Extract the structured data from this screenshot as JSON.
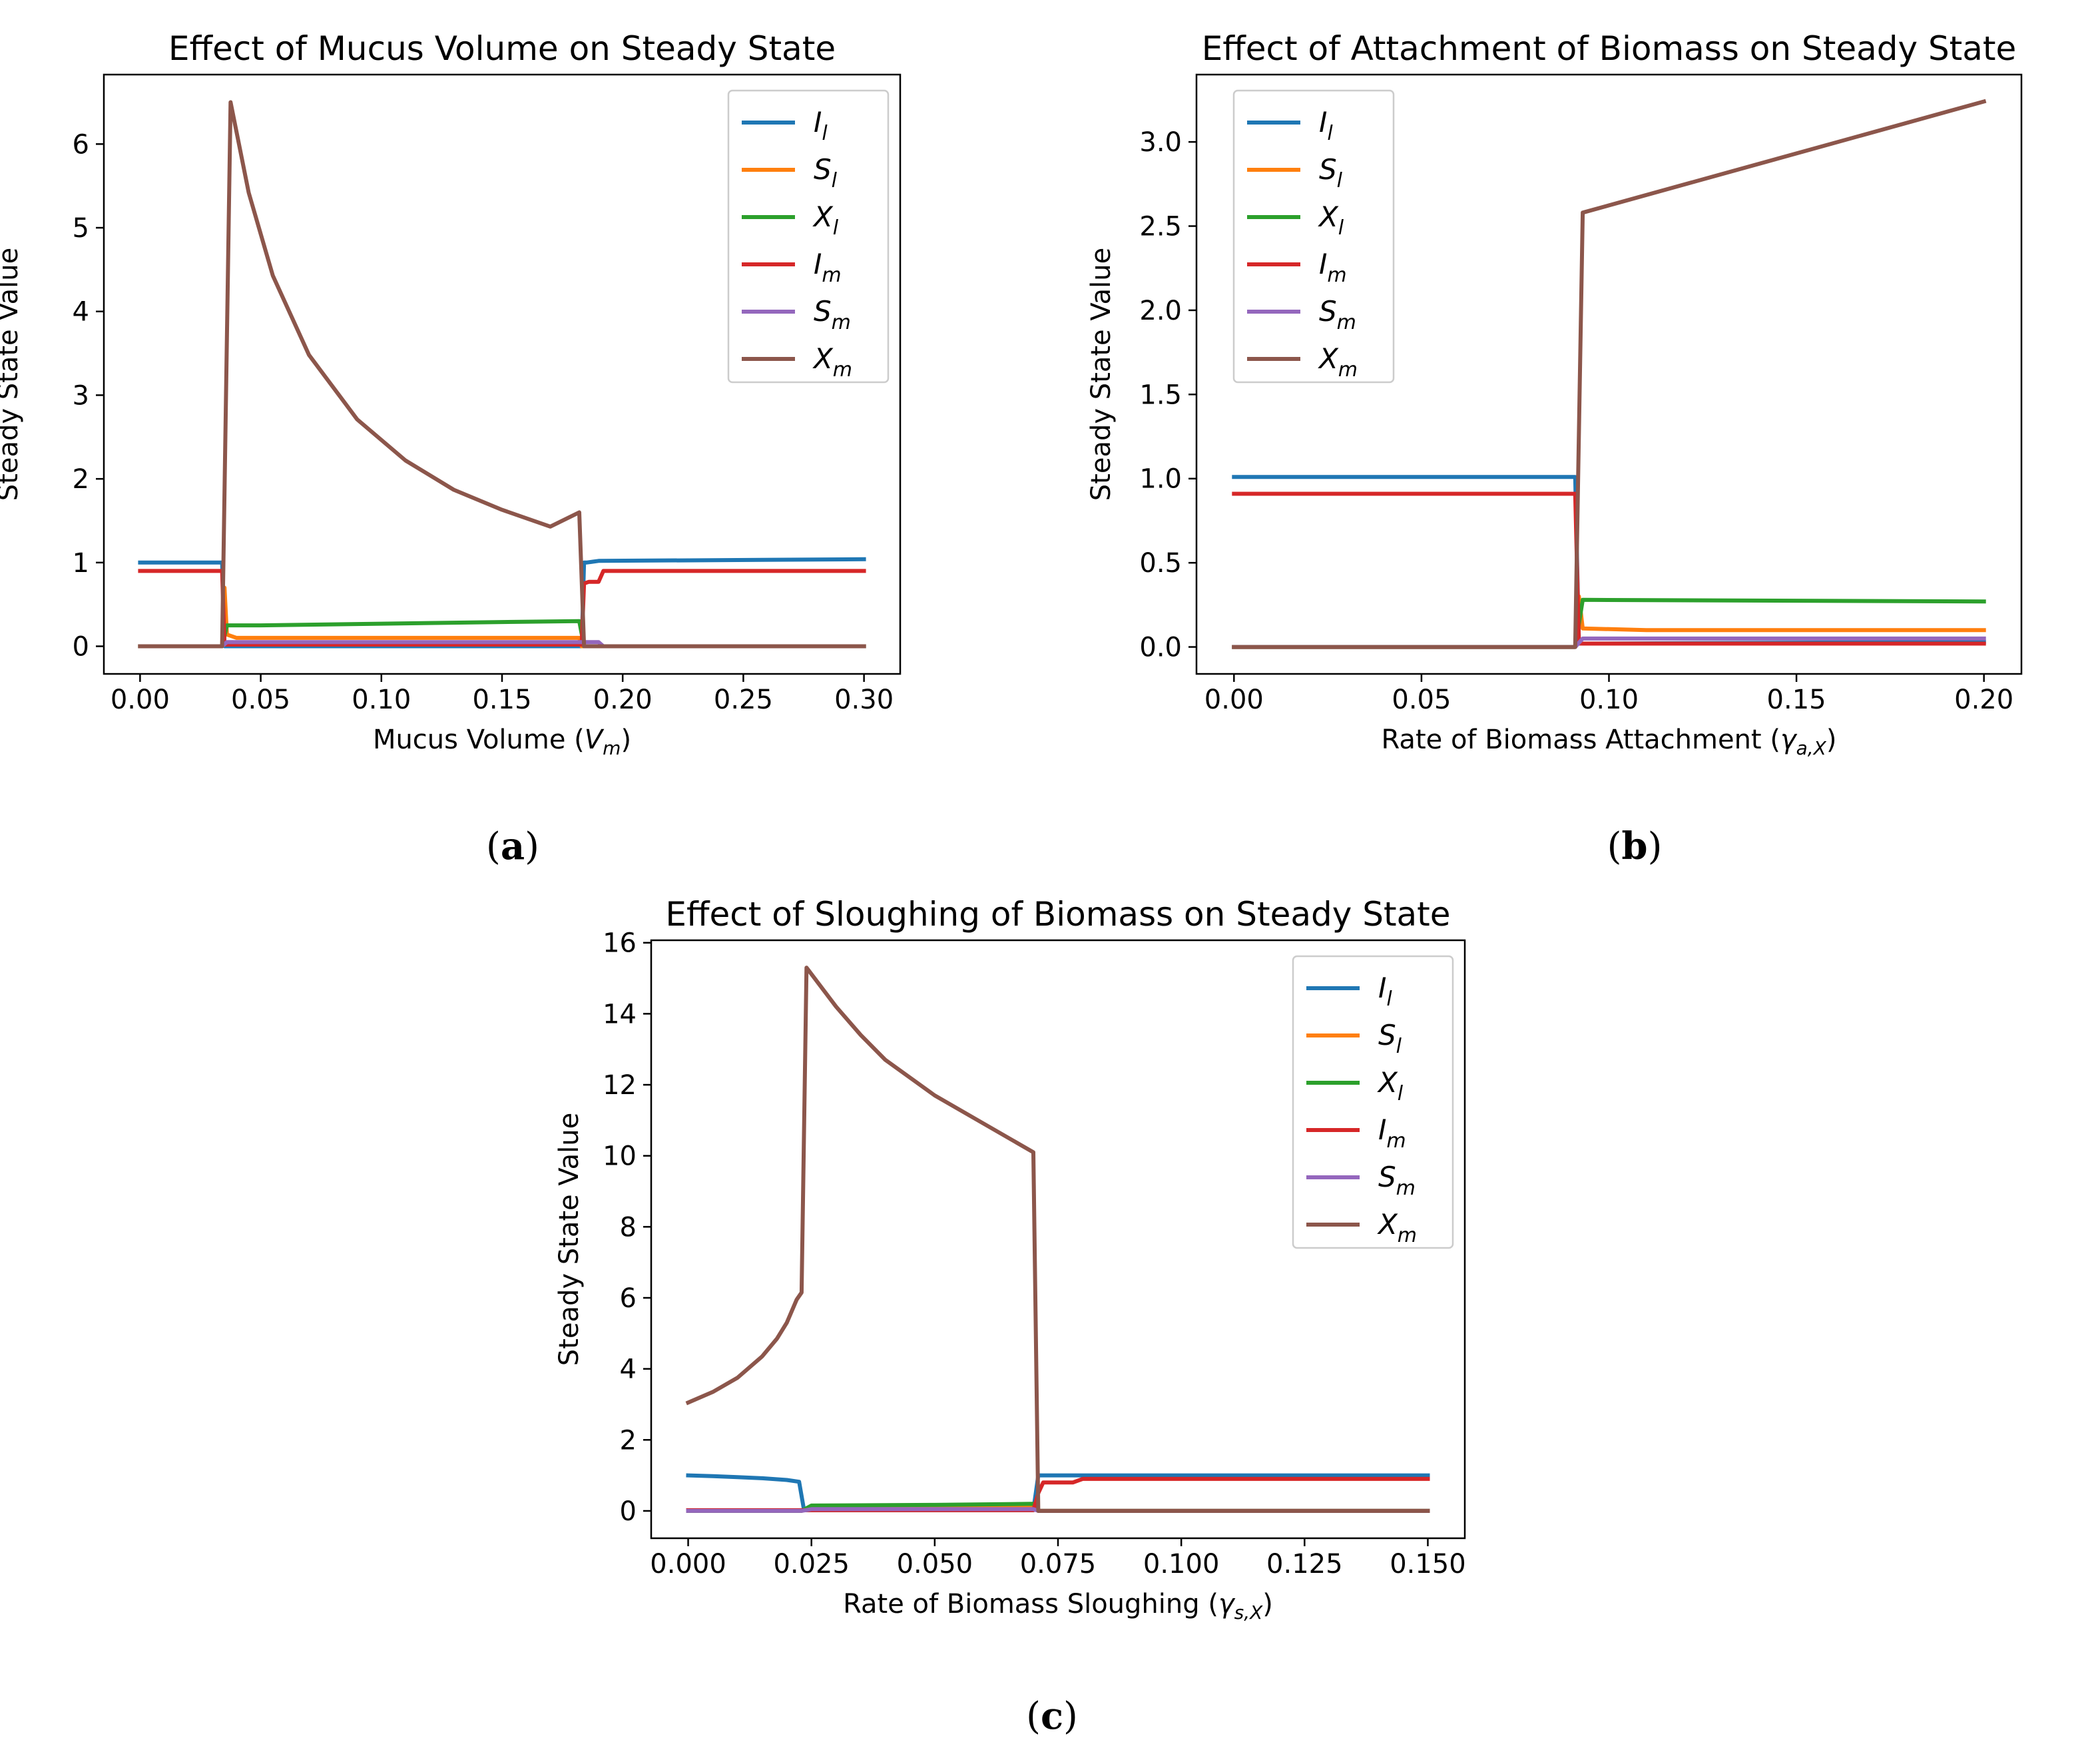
{
  "colors": {
    "I_l": "#1f77b4",
    "S_l": "#ff7f0e",
    "X_l": "#2ca02c",
    "I_m": "#d62728",
    "S_m": "#9467bd",
    "X_m": "#8c564b"
  },
  "legend_entries": [
    {
      "key": "I_l",
      "base": "I",
      "sub": "l"
    },
    {
      "key": "S_l",
      "base": "S",
      "sub": "l"
    },
    {
      "key": "X_l",
      "base": "X",
      "sub": "l"
    },
    {
      "key": "I_m",
      "base": "I",
      "sub": "m"
    },
    {
      "key": "S_m",
      "base": "S",
      "sub": "m"
    },
    {
      "key": "X_m",
      "base": "X",
      "sub": "m"
    }
  ],
  "chart_data": [
    {
      "id": "a",
      "type": "line",
      "panel_label": "a",
      "title": "Effect of Mucus Volume on Steady State",
      "xlabel_pre": "Mucus Volume (",
      "xlabel_sym": "V",
      "xlabel_sub": "m",
      "xlabel_post": ")",
      "ylabel": "Steady State Value",
      "xlim": [
        -0.015,
        0.315
      ],
      "ylim": [
        -0.33,
        6.83
      ],
      "xticks": [
        0.0,
        0.05,
        0.1,
        0.15,
        0.2,
        0.25,
        0.3
      ],
      "xtick_labels": [
        "0.00",
        "0.05",
        "0.10",
        "0.15",
        "0.20",
        "0.25",
        "0.30"
      ],
      "yticks": [
        0,
        1,
        2,
        3,
        4,
        5,
        6
      ],
      "ytick_labels": [
        "0",
        "1",
        "2",
        "3",
        "4",
        "5",
        "6"
      ],
      "legend_position": "upper right",
      "series": [
        {
          "key": "I_l",
          "x": [
            0,
            0.034,
            0.035,
            0.183,
            0.184,
            0.185,
            0.19,
            0.3
          ],
          "y": [
            1.0,
            1.0,
            0.0,
            0.0,
            1.0,
            1.0,
            1.02,
            1.04
          ]
        },
        {
          "key": "S_l",
          "x": [
            0,
            0.034,
            0.035,
            0.036,
            0.04,
            0.1,
            0.182,
            0.183,
            0.19,
            0.3
          ],
          "y": [
            0,
            0,
            0.7,
            0.14,
            0.1,
            0.1,
            0.1,
            0.0,
            0.0,
            0.0
          ]
        },
        {
          "key": "X_l",
          "x": [
            0,
            0.034,
            0.036,
            0.05,
            0.1,
            0.15,
            0.182,
            0.184,
            0.3
          ],
          "y": [
            0,
            0,
            0.25,
            0.25,
            0.27,
            0.29,
            0.3,
            0.0,
            0.0
          ]
        },
        {
          "key": "I_m",
          "x": [
            0,
            0.034,
            0.035,
            0.183,
            0.184,
            0.186,
            0.19,
            0.192,
            0.3
          ],
          "y": [
            0.9,
            0.9,
            0.02,
            0.02,
            0.75,
            0.77,
            0.77,
            0.9,
            0.9
          ]
        },
        {
          "key": "S_m",
          "x": [
            0,
            0.034,
            0.036,
            0.182,
            0.184,
            0.19,
            0.192,
            0.3
          ],
          "y": [
            0,
            0,
            0.05,
            0.05,
            0.05,
            0.05,
            0.0,
            0.0
          ]
        },
        {
          "key": "X_m",
          "x": [
            0,
            0.034,
            0.0375,
            0.045,
            0.055,
            0.07,
            0.09,
            0.11,
            0.13,
            0.15,
            0.17,
            0.182,
            0.184,
            0.3
          ],
          "y": [
            0,
            0,
            6.5,
            5.42,
            4.43,
            3.48,
            2.71,
            2.22,
            1.87,
            1.63,
            1.43,
            1.6,
            0.0,
            0.0
          ]
        }
      ]
    },
    {
      "id": "b",
      "type": "line",
      "panel_label": "b",
      "title": "Effect of Attachment of Biomass on Steady State",
      "xlabel_pre": "Rate of Biomass Attachment (",
      "xlabel_sym": "γ",
      "xlabel_sub": "a,X",
      "xlabel_post": ")",
      "ylabel": "Steady State Value",
      "xlim": [
        -0.01,
        0.21
      ],
      "ylim": [
        -0.16,
        3.4
      ],
      "xticks": [
        0.0,
        0.05,
        0.1,
        0.15,
        0.2
      ],
      "xtick_labels": [
        "0.00",
        "0.05",
        "0.10",
        "0.15",
        "0.20"
      ],
      "yticks": [
        0.0,
        0.5,
        1.0,
        1.5,
        2.0,
        2.5,
        3.0
      ],
      "ytick_labels": [
        "0.0",
        "0.5",
        "1.0",
        "1.5",
        "2.0",
        "2.5",
        "3.0"
      ],
      "legend_position": "upper left",
      "series": [
        {
          "key": "I_l",
          "x": [
            0,
            0.091,
            0.092,
            0.2
          ],
          "y": [
            1.01,
            1.01,
            0.02,
            0.03
          ]
        },
        {
          "key": "S_l",
          "x": [
            0,
            0.091,
            0.092,
            0.093,
            0.11,
            0.2
          ],
          "y": [
            0,
            0,
            0.3,
            0.11,
            0.1,
            0.1
          ]
        },
        {
          "key": "X_l",
          "x": [
            0,
            0.091,
            0.093,
            0.2
          ],
          "y": [
            0,
            0,
            0.28,
            0.27
          ]
        },
        {
          "key": "I_m",
          "x": [
            0,
            0.091,
            0.092,
            0.2
          ],
          "y": [
            0.91,
            0.91,
            0.02,
            0.02
          ]
        },
        {
          "key": "S_m",
          "x": [
            0,
            0.091,
            0.093,
            0.2
          ],
          "y": [
            0,
            0,
            0.05,
            0.05
          ]
        },
        {
          "key": "X_m",
          "x": [
            0,
            0.091,
            0.093,
            0.2
          ],
          "y": [
            0,
            0,
            2.58,
            3.24
          ]
        }
      ]
    },
    {
      "id": "c",
      "type": "line",
      "panel_label": "c",
      "title": "Effect of Sloughing of Biomass on Steady State",
      "xlabel_pre": "Rate of Biomass Sloughing (",
      "xlabel_sym": "γ",
      "xlabel_sub": "s,X",
      "xlabel_post": ")",
      "ylabel": "Steady State Value",
      "xlim": [
        -0.0075,
        0.1575
      ],
      "ylim": [
        -0.77,
        16.07
      ],
      "xticks": [
        0.0,
        0.025,
        0.05,
        0.075,
        0.1,
        0.125,
        0.15
      ],
      "xtick_labels": [
        "0.000",
        "0.025",
        "0.050",
        "0.075",
        "0.100",
        "0.125",
        "0.150"
      ],
      "yticks": [
        0,
        2,
        4,
        6,
        8,
        10,
        12,
        14,
        16
      ],
      "ytick_labels": [
        "0",
        "2",
        "4",
        "6",
        "8",
        "10",
        "12",
        "14",
        "16"
      ],
      "legend_position": "upper right",
      "series": [
        {
          "key": "I_l",
          "x": [
            0,
            0.005,
            0.01,
            0.015,
            0.02,
            0.0225,
            0.0235,
            0.07,
            0.071,
            0.072,
            0.15
          ],
          "y": [
            1.0,
            0.98,
            0.95,
            0.92,
            0.87,
            0.82,
            0.02,
            0.02,
            1.0,
            1.0,
            1.0
          ]
        },
        {
          "key": "S_l",
          "x": [
            0,
            0.023,
            0.025,
            0.05,
            0.07,
            0.071,
            0.15
          ],
          "y": [
            0,
            0,
            0.12,
            0.14,
            0.15,
            0.0,
            0.0
          ]
        },
        {
          "key": "X_l",
          "x": [
            0,
            0.023,
            0.025,
            0.05,
            0.07,
            0.071,
            0.15
          ],
          "y": [
            0,
            0,
            0.15,
            0.17,
            0.2,
            0.0,
            0.0
          ]
        },
        {
          "key": "I_m",
          "x": [
            0,
            0.023,
            0.07,
            0.071,
            0.072,
            0.078,
            0.08,
            0.15
          ],
          "y": [
            0.02,
            0.02,
            0.02,
            0.5,
            0.8,
            0.8,
            0.9,
            0.9
          ]
        },
        {
          "key": "S_m",
          "x": [
            0,
            0.023,
            0.025,
            0.07,
            0.071,
            0.15
          ],
          "y": [
            0,
            0,
            0.05,
            0.05,
            0.0,
            0.0
          ]
        },
        {
          "key": "X_m",
          "x": [
            0,
            0.005,
            0.01,
            0.015,
            0.018,
            0.02,
            0.022,
            0.023,
            0.024,
            0.03,
            0.035,
            0.04,
            0.05,
            0.06,
            0.07,
            0.071,
            0.072,
            0.15
          ],
          "y": [
            3.05,
            3.35,
            3.75,
            4.35,
            4.85,
            5.3,
            5.95,
            6.15,
            15.3,
            14.2,
            13.4,
            12.7,
            11.7,
            10.9,
            10.1,
            0.0,
            0.0,
            0.0
          ]
        }
      ]
    }
  ]
}
